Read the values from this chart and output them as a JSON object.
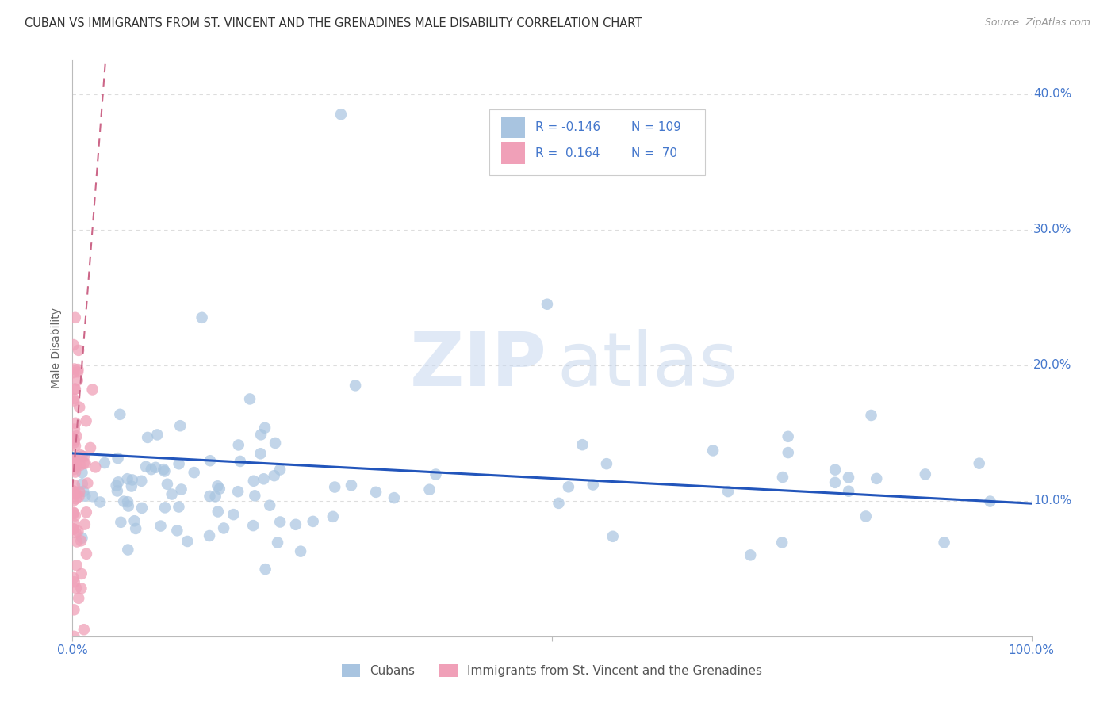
{
  "title": "CUBAN VS IMMIGRANTS FROM ST. VINCENT AND THE GRENADINES MALE DISABILITY CORRELATION CHART",
  "source": "Source: ZipAtlas.com",
  "ylabel": "Male Disability",
  "cubans_color": "#a8c4e0",
  "immigrants_color": "#f0a0b8",
  "trendline_blue_color": "#2255bb",
  "trendline_pink_color": "#cc6688",
  "watermark_zip": "ZIP",
  "watermark_atlas": "atlas",
  "background_color": "#ffffff",
  "grid_color": "#dddddd",
  "axis_color": "#bbbbbb",
  "text_color_blue": "#4477cc",
  "title_color": "#333333",
  "source_color": "#999999",
  "legend_r1": "R = -0.146",
  "legend_n1": "N = 109",
  "legend_r2": "R =  0.164",
  "legend_n2": "N =  70",
  "blue_trend_x": [
    0.0,
    1.0
  ],
  "blue_trend_y": [
    0.135,
    0.098
  ],
  "pink_trend_x": [
    0.0,
    0.035
  ],
  "pink_trend_y": [
    0.11,
    0.43
  ],
  "xlim": [
    0.0,
    1.0
  ],
  "ylim": [
    0.0,
    0.425
  ],
  "yticks": [
    0.0,
    0.1,
    0.2,
    0.3,
    0.4
  ],
  "ytick_labels": [
    "",
    "10.0%",
    "20.0%",
    "30.0%",
    "40.0%"
  ],
  "xtick_positions": [
    0.0,
    0.5,
    1.0
  ],
  "xtick_labels": [
    "0.0%",
    "",
    "100.0%"
  ]
}
